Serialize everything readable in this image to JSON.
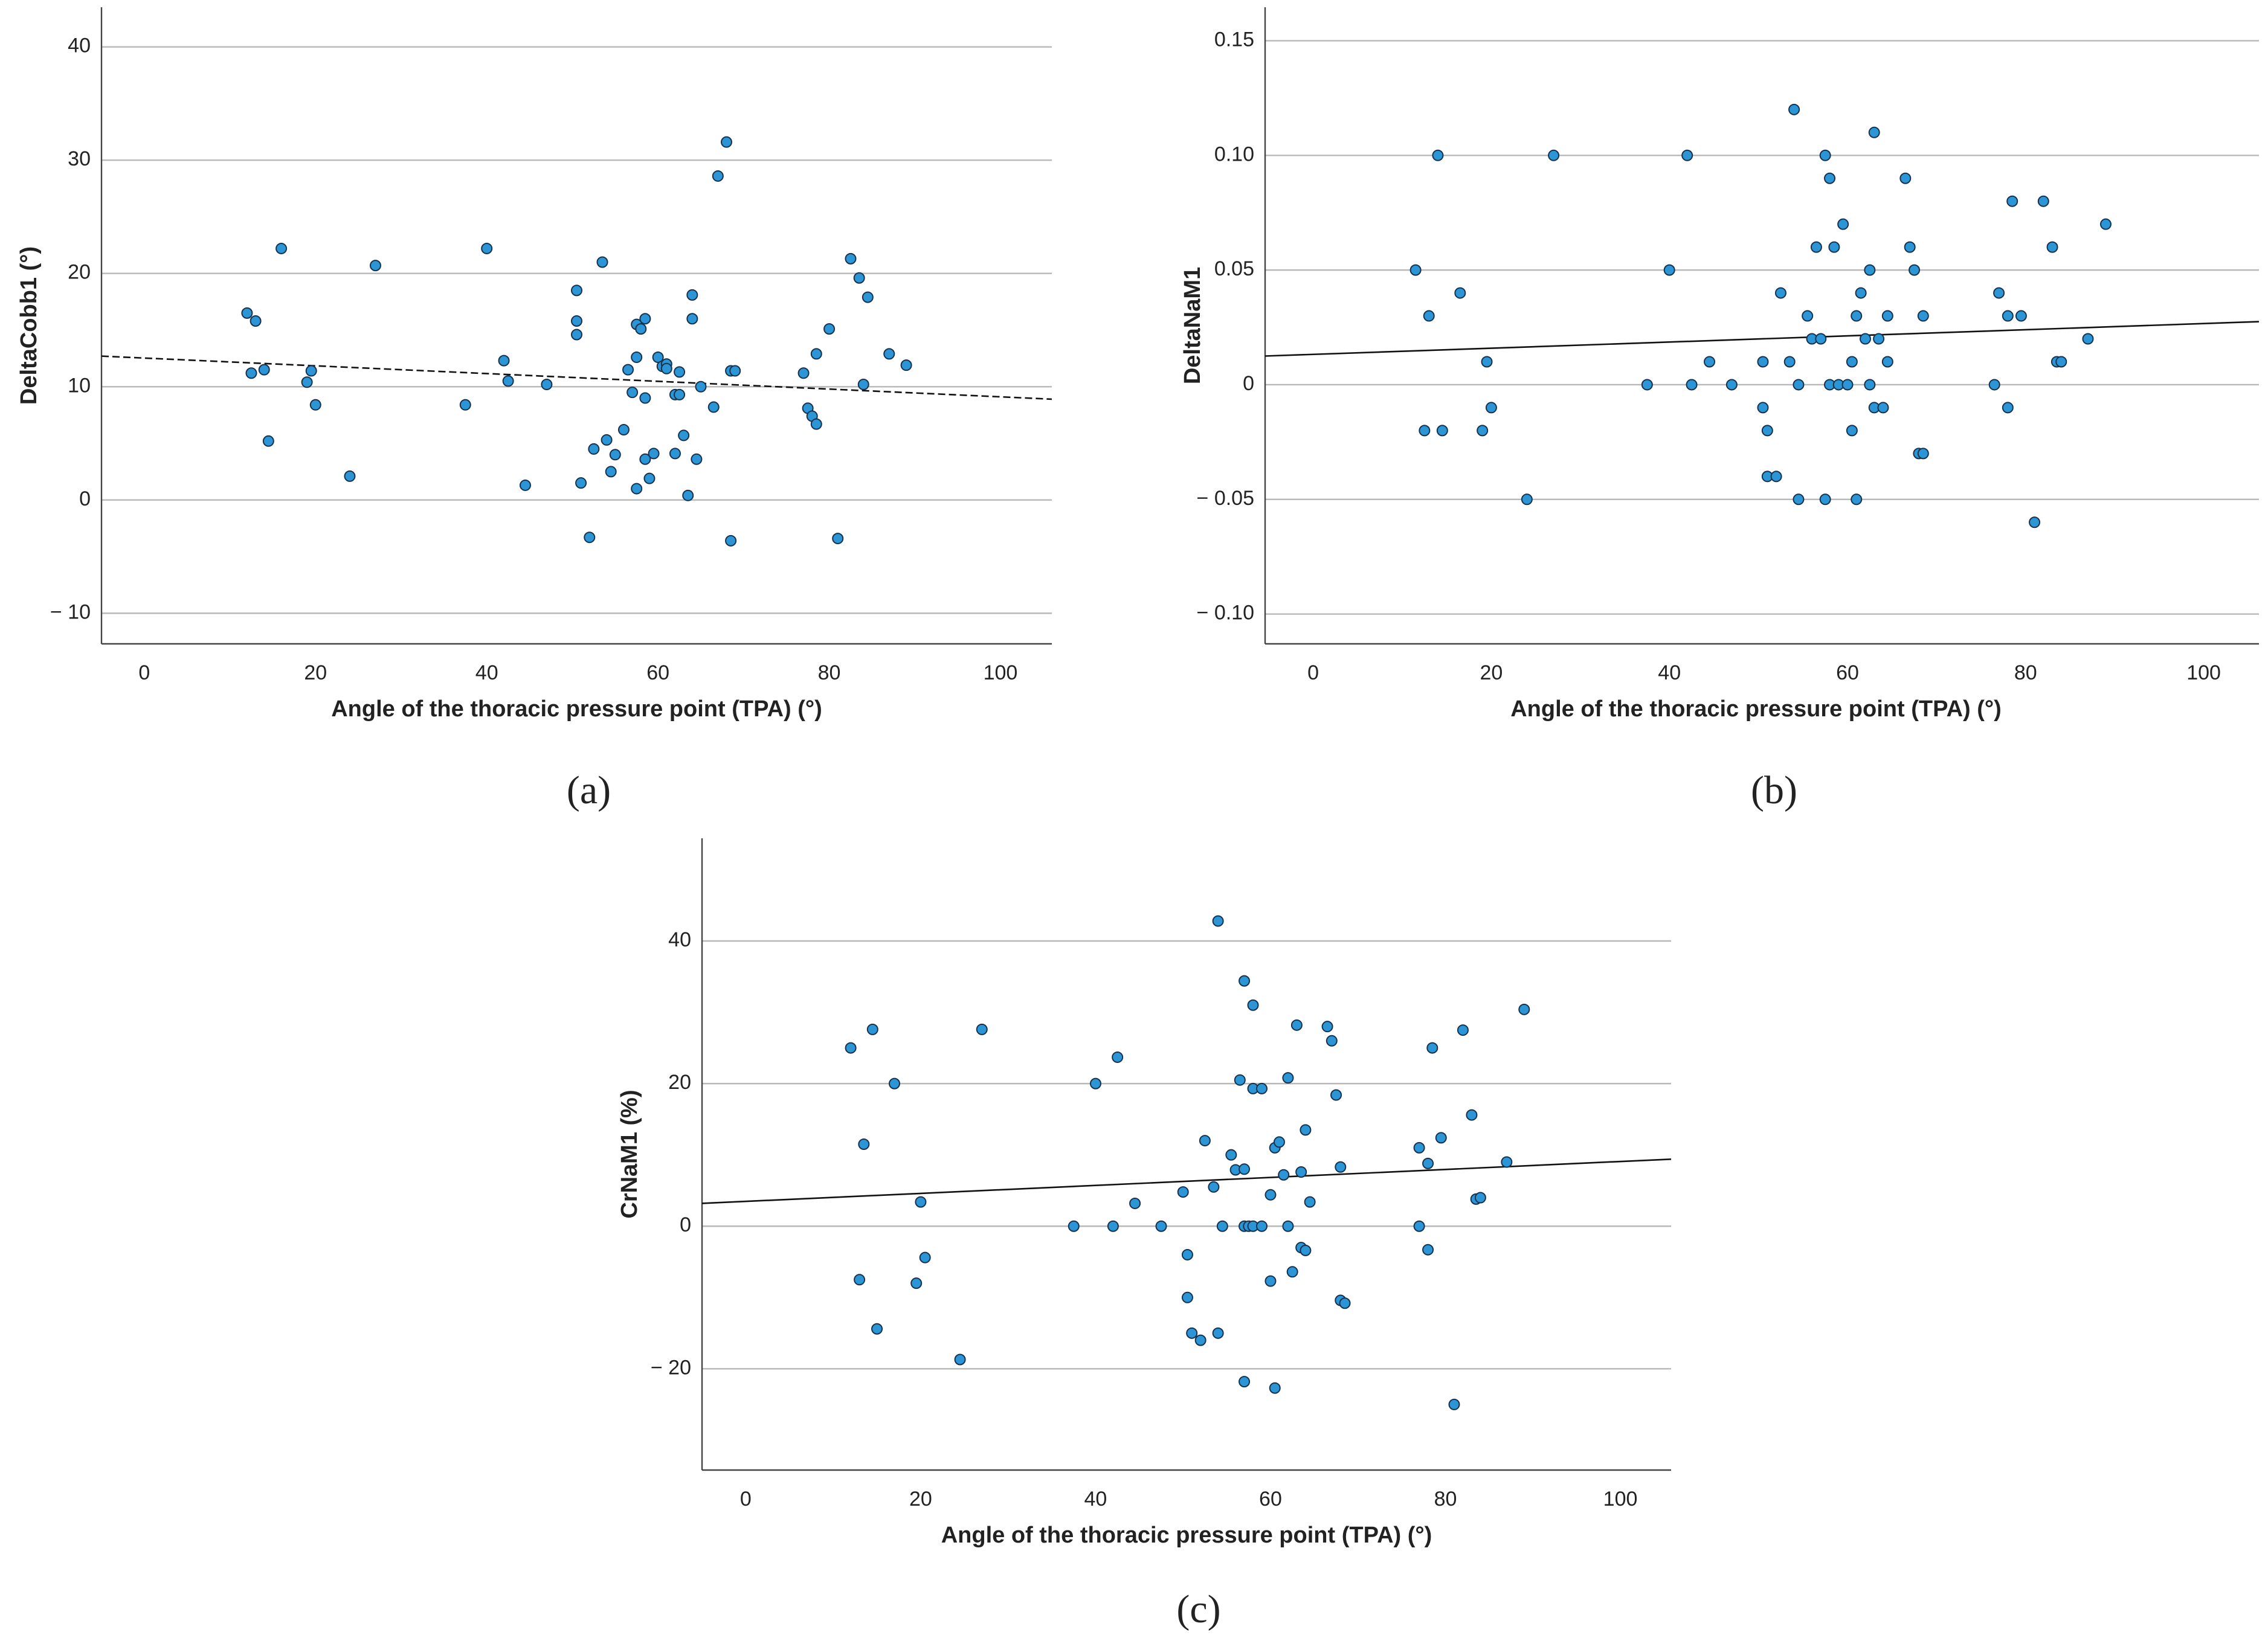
{
  "chart_data": [
    {
      "type": "scatter",
      "caption": "(a)",
      "xlabel": "Angle of the thoracic pressure point (TPA) (°)",
      "ylabel": "DeltaCobb1 (°)",
      "xlim": [
        -5,
        106
      ],
      "ylim": [
        -12.7,
        43.5
      ],
      "xticks": [
        0,
        20,
        40,
        60,
        80,
        100
      ],
      "yticks": [
        {
          "value": -10,
          "label": "− 10"
        },
        0,
        10,
        20,
        30,
        40
      ],
      "grid": true,
      "color": "#2b95d6",
      "x": [
        12,
        12.5,
        13,
        14,
        14.5,
        16,
        19,
        19.5,
        20,
        24,
        27,
        37.5,
        40,
        42,
        42.5,
        44.5,
        47,
        50.5,
        50.5,
        50.5,
        51,
        52,
        52.5,
        53.5,
        54,
        54.5,
        55,
        56,
        56.5,
        57,
        57.5,
        57.5,
        57.5,
        58,
        58.5,
        58.5,
        58.5,
        59,
        59.5,
        60,
        60.5,
        61,
        61,
        62,
        62,
        62.5,
        62.5,
        63,
        63.5,
        64,
        64,
        64.5,
        65,
        66.5,
        67,
        68,
        68.5,
        68.5,
        69,
        77,
        77.5,
        78,
        78.5,
        78.5,
        80,
        81,
        82.5,
        83.5,
        84,
        84.5,
        87,
        89
      ],
      "values": [
        16.5,
        11.2,
        15.8,
        11.5,
        5.2,
        22.2,
        10.4,
        11.4,
        8.4,
        2.1,
        20.7,
        8.4,
        22.2,
        12.3,
        10.5,
        1.3,
        10.2,
        15.8,
        18.5,
        14.6,
        1.5,
        -3.3,
        4.5,
        21,
        5.3,
        2.5,
        4,
        6.2,
        11.5,
        9.5,
        1,
        12.6,
        15.5,
        15.1,
        16,
        3.6,
        9,
        1.9,
        4.1,
        12.6,
        11.8,
        12,
        11.6,
        9.3,
        4.1,
        11.3,
        9.3,
        5.7,
        0.4,
        16,
        18.1,
        3.6,
        10,
        8.2,
        28.6,
        31.6,
        11.4,
        -3.6,
        11.4,
        11.2,
        8.1,
        7.4,
        6.7,
        12.9,
        15.1,
        -3.4,
        21.3,
        19.6,
        10.2,
        17.9,
        12.9,
        11.9
      ],
      "trend_line": {
        "x": [
          -5,
          106
        ],
        "y": [
          12.7,
          8.9
        ],
        "dashed": true
      }
    },
    {
      "type": "scatter",
      "caption": "(b)",
      "xlabel": "Angle of the thoracic pressure point (TPA) (°)",
      "ylabel": "DeltaNaM1",
      "xlim": [
        -5.4,
        106.2
      ],
      "ylim": [
        -0.113,
        0.1646
      ],
      "xticks": [
        0,
        20,
        40,
        60,
        80,
        100
      ],
      "yticks": [
        {
          "value": -0.1,
          "label": "− 0.10"
        },
        {
          "value": -0.05,
          "label": "− 0.05"
        },
        0,
        0.05,
        {
          "value": 0.1,
          "label": "0.10"
        },
        0.15
      ],
      "grid": true,
      "color": "#2b95d6",
      "x": [
        11.5,
        12.5,
        13,
        14,
        14.5,
        16.5,
        19,
        19.5,
        20,
        24,
        27,
        37.5,
        40,
        42,
        42.5,
        44.5,
        47,
        50.5,
        50.5,
        51,
        51,
        52,
        52.5,
        53.5,
        54,
        54.5,
        54.5,
        55.5,
        56,
        56.5,
        57,
        57.5,
        57.5,
        58,
        58,
        58.5,
        59,
        59.5,
        60,
        60.5,
        60.5,
        61,
        61,
        61.5,
        62,
        62.5,
        62.5,
        63,
        63,
        63.5,
        64,
        64.5,
        64.5,
        66.5,
        67,
        67.5,
        68,
        68.5,
        68.5,
        76.5,
        77,
        78,
        78,
        78.5,
        79.5,
        81,
        82,
        83,
        83.5,
        84,
        87,
        89
      ],
      "values": [
        0.05,
        -0.02,
        0.03,
        0.1,
        -0.02,
        0.04,
        -0.02,
        0.01,
        -0.01,
        -0.05,
        0.1,
        0,
        0.05,
        0.1,
        0,
        0.01,
        0,
        0.01,
        -0.01,
        -0.02,
        -0.04,
        -0.04,
        0.04,
        0.01,
        0.12,
        0,
        -0.05,
        0.03,
        0.02,
        0.06,
        0.02,
        0.1,
        -0.05,
        0.09,
        0,
        0.06,
        0,
        0.07,
        0,
        0.01,
        -0.02,
        0.03,
        -0.05,
        0.04,
        0.02,
        0.05,
        0,
        -0.01,
        0.11,
        0.02,
        -0.01,
        0.03,
        0.01,
        0.09,
        0.06,
        0.05,
        -0.03,
        0.03,
        -0.03,
        0,
        0.04,
        -0.01,
        0.03,
        0.08,
        0.03,
        -0.06,
        0.08,
        0.06,
        0.01,
        0.01,
        0.02,
        0.07
      ],
      "trend_line": {
        "x": [
          -5.4,
          106.2
        ],
        "y": [
          0.0125,
          0.0275
        ],
        "dashed": false
      }
    },
    {
      "type": "scatter",
      "caption": "(c)",
      "xlabel": "Angle of the thoracic pressure point (TPA) (°)",
      "ylabel": "CrNaM1 (%)",
      "xlim": [
        -5,
        105.8
      ],
      "ylim": [
        -34.2,
        54.4
      ],
      "xticks": [
        0,
        20,
        40,
        60,
        80,
        100
      ],
      "yticks": [
        {
          "value": -20,
          "label": "− 20"
        },
        0,
        20,
        40
      ],
      "grid": true,
      "color": "#2b95d6",
      "x": [
        12,
        13,
        13.5,
        14.5,
        15,
        17,
        19.5,
        20,
        20.5,
        24.5,
        27,
        37.5,
        40,
        42,
        42.5,
        44.5,
        47.5,
        50,
        50.5,
        50.5,
        51,
        52,
        52.5,
        53.5,
        54,
        54,
        54.5,
        55.5,
        56,
        56.5,
        57,
        57,
        57,
        57,
        57.5,
        58,
        58,
        58,
        59,
        59,
        60,
        60,
        60.5,
        60.5,
        61,
        61.5,
        62,
        62,
        62.5,
        63,
        63.5,
        63.5,
        64,
        64,
        64.5,
        66.5,
        67,
        67.5,
        68,
        68,
        68.5,
        77,
        77,
        78,
        78,
        78.5,
        79.5,
        81,
        82,
        83,
        83.5,
        84,
        87,
        89
      ],
      "values": [
        25,
        -7.5,
        11.5,
        27.6,
        -14.4,
        20,
        -8,
        3.4,
        -4.4,
        -18.7,
        27.6,
        0,
        20,
        0,
        23.7,
        3.2,
        0,
        4.8,
        -4,
        -10,
        -15,
        -16,
        12,
        5.5,
        42.8,
        -15,
        0,
        10,
        7.9,
        20.5,
        8,
        0,
        -21.8,
        34.4,
        0,
        31,
        19.3,
        0,
        19.3,
        0,
        4.4,
        -7.7,
        11,
        -22.7,
        11.8,
        7.2,
        20.8,
        0,
        -6.4,
        28.2,
        7.6,
        -3,
        -3.4,
        13.5,
        3.4,
        28,
        26,
        18.4,
        8.3,
        -10.4,
        -10.8,
        0,
        11,
        -3.3,
        8.8,
        25,
        12.4,
        -25,
        27.5,
        15.6,
        3.8,
        4,
        9,
        30.4
      ],
      "trend_line": {
        "x": [
          -5,
          105.8
        ],
        "y": [
          3.2,
          9.4
        ],
        "dashed": false
      }
    }
  ]
}
